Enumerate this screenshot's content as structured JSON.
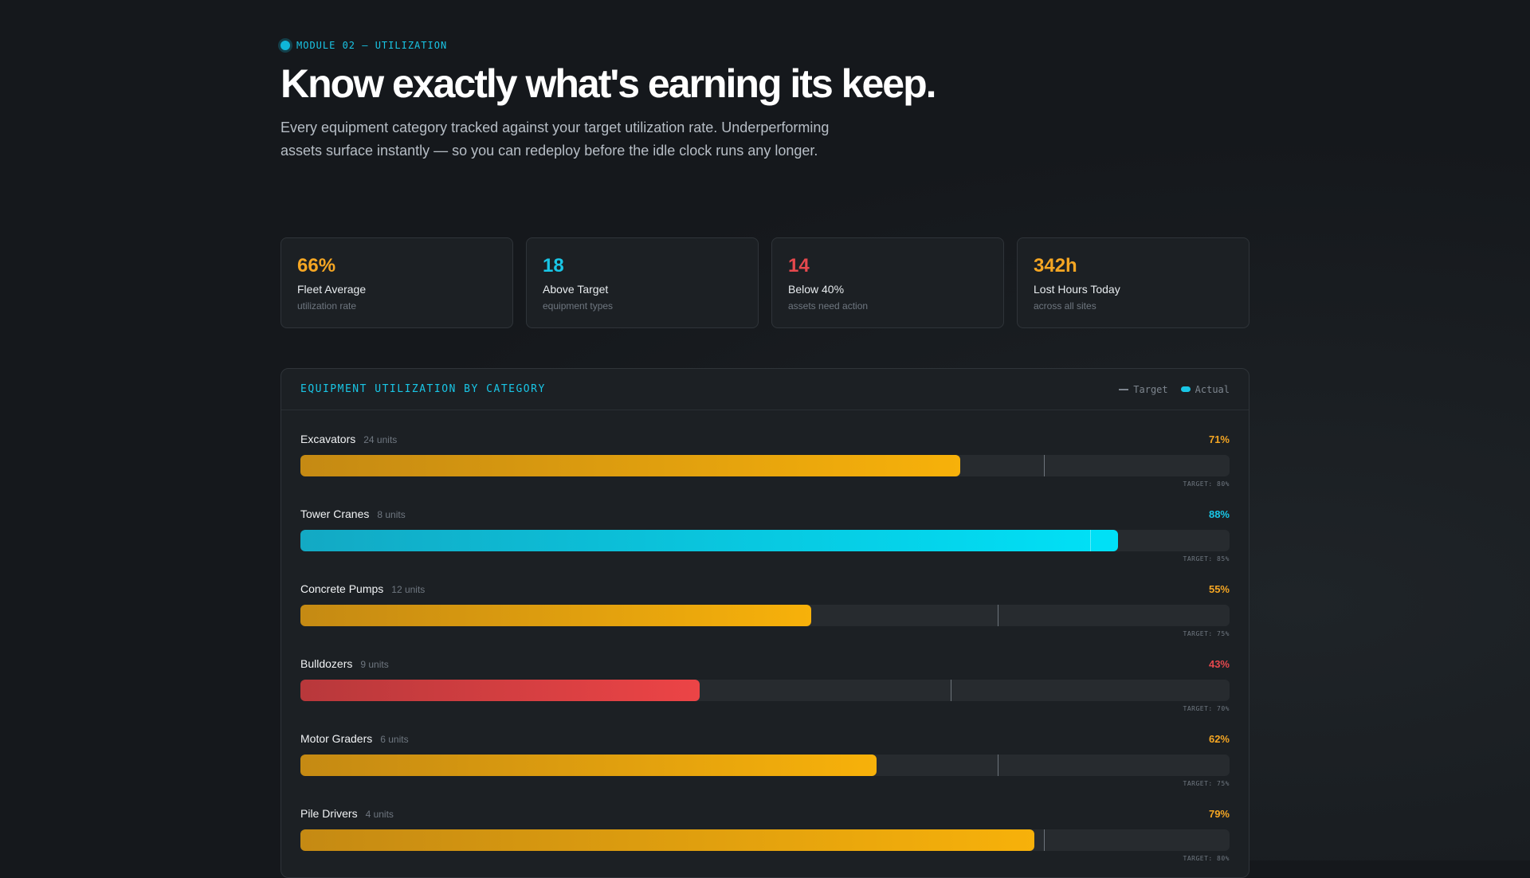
{
  "header": {
    "eyebrow": "MODULE 02 — UTILIZATION",
    "title": "Know exactly what's earning its keep.",
    "lead": "Every equipment category tracked against your target utilization rate. Underperforming assets surface instantly — so you can redeploy before the idle clock runs any longer."
  },
  "stats": [
    {
      "value": "66%",
      "label": "Fleet Average",
      "sub": "utilization rate",
      "color": "#f5a623"
    },
    {
      "value": "18",
      "label": "Above Target",
      "sub": "equipment types",
      "color": "#19c6e6"
    },
    {
      "value": "14",
      "label": "Below 40%",
      "sub": "assets need action",
      "color": "#e5484d"
    },
    {
      "value": "342h",
      "label": "Lost Hours Today",
      "sub": "across all sites",
      "color": "#f5a623"
    }
  ],
  "panel": {
    "title": "EQUIPMENT UTILIZATION BY CATEGORY",
    "legend_target": "Target",
    "legend_actual": "Actual"
  },
  "colors": {
    "amber": "#f5a623",
    "cyan": "#19c6e6",
    "red": "#e5484d"
  },
  "chart_data": {
    "type": "bar",
    "categories": [
      "Excavators",
      "Tower Cranes",
      "Concrete Pumps",
      "Bulldozers",
      "Motor Graders",
      "Pile Drivers"
    ],
    "units": [
      "24 units",
      "8 units",
      "12 units",
      "9 units",
      "6 units",
      "4 units"
    ],
    "actual": [
      71,
      88,
      55,
      43,
      62,
      79
    ],
    "targets": [
      80,
      85,
      75,
      70,
      75,
      80
    ],
    "actual_labels": [
      "71%",
      "88%",
      "55%",
      "43%",
      "62%",
      "79%"
    ],
    "target_labels": [
      "TARGET: 80%",
      "TARGET: 85%",
      "TARGET: 75%",
      "TARGET: 70%",
      "TARGET: 75%",
      "TARGET: 80%"
    ],
    "status": [
      "amber",
      "cyan",
      "amber",
      "red",
      "amber",
      "amber"
    ],
    "xlim": [
      0,
      100
    ]
  }
}
